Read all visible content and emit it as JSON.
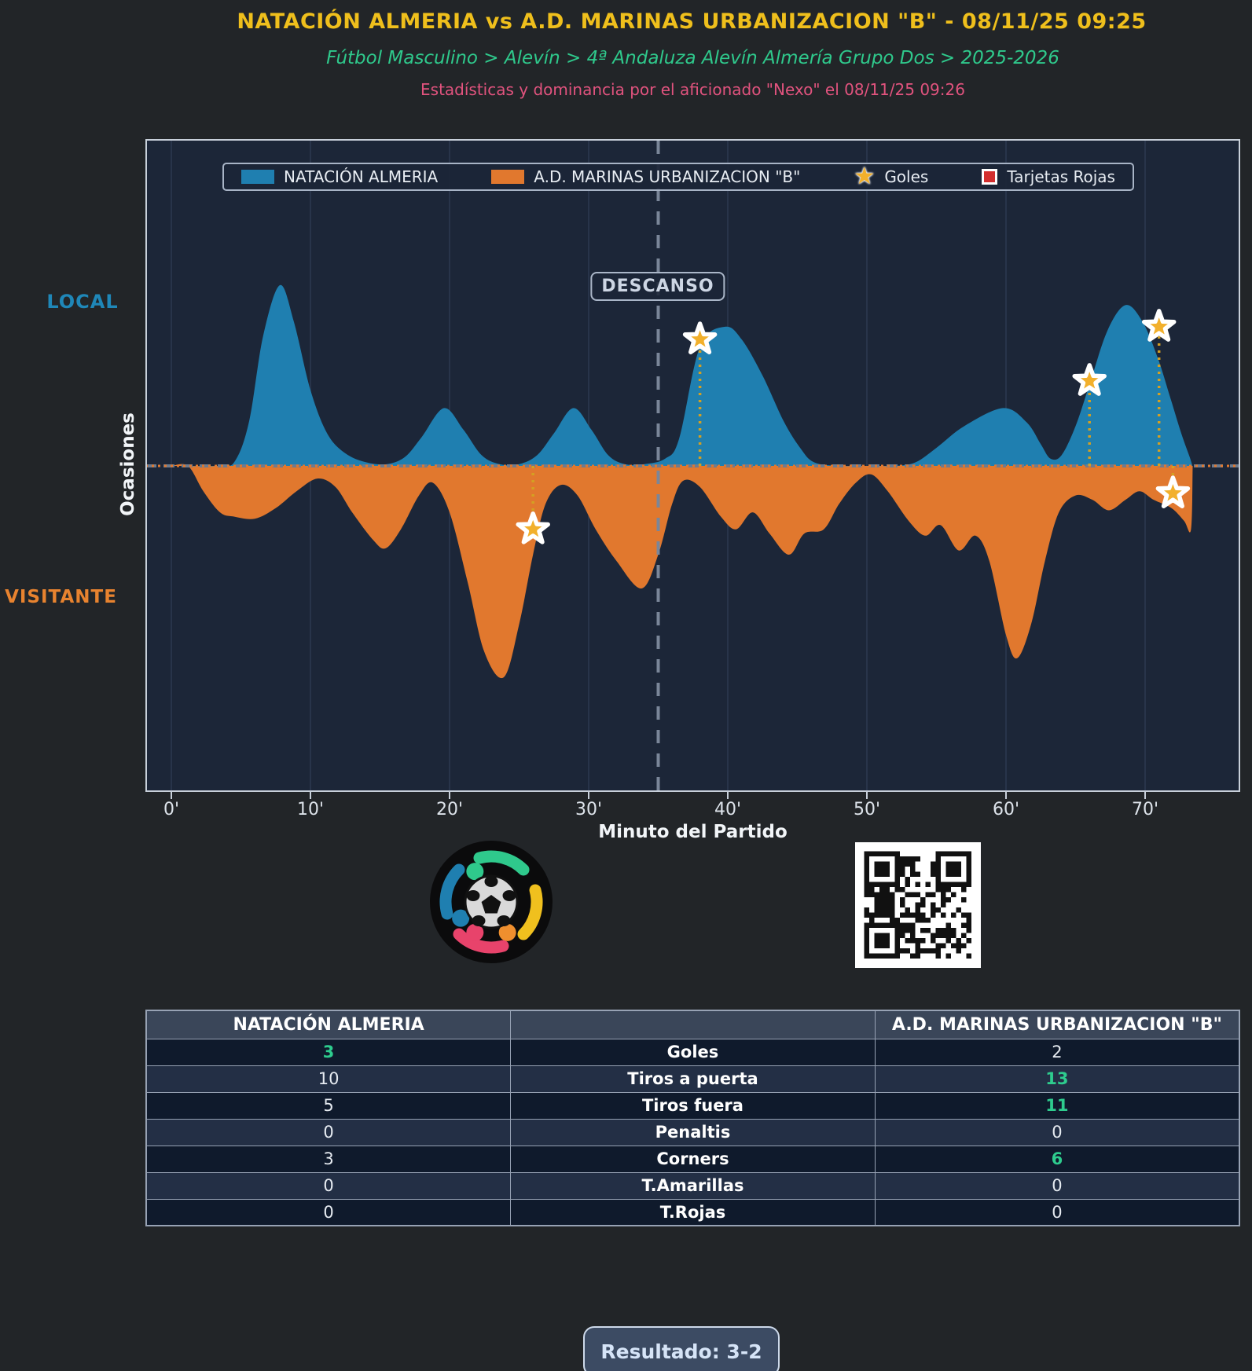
{
  "header": {
    "title": "NATACIÓN ALMERIA vs A.D. MARINAS URBANIZACION \"B\" - 08/11/25 09:25",
    "breadcrumb": "Fútbol Masculino > Alevín > 4ª Andaluza Alevín Almería Grupo Dos > 2025-2026",
    "byline": "Estadísticas y dominancia por el aficionado \"Nexo\" el 08/11/25 09:26"
  },
  "legend": {
    "home_label": "NATACIÓN ALMERIA",
    "away_label": "A.D. MARINAS URBANIZACION \"B\"",
    "goals_label": "Goles",
    "red_cards_label": "Tarjetas Rojas"
  },
  "axis": {
    "side_top": "LOCAL",
    "side_bottom": "VISITANTE",
    "ylabel": "Ocasiones",
    "xlabel": "Minuto del Partido",
    "halftime_label": "DESCANSO",
    "xticks": [
      "0'",
      "10'",
      "20'",
      "30'",
      "40'",
      "50'",
      "60'",
      "70'"
    ]
  },
  "chart_data": {
    "type": "area",
    "description": "Mirrored dominance timeline: home occasions plotted up (blue), away occasions plotted down (orange), intensity normalized 0-1",
    "x_unit": "minute",
    "x_range": [
      -2,
      77
    ],
    "halftime_minute": 35,
    "xtick_minutes": [
      0,
      10,
      20,
      30,
      40,
      50,
      60,
      70
    ],
    "home_series": [
      [
        0,
        0
      ],
      [
        3.5,
        0
      ],
      [
        4.6,
        0.03
      ],
      [
        5.6,
        0.25
      ],
      [
        6.6,
        0.72
      ],
      [
        7.8,
        1.0
      ],
      [
        8.8,
        0.8
      ],
      [
        10,
        0.42
      ],
      [
        11.2,
        0.18
      ],
      [
        12.5,
        0.07
      ],
      [
        14,
        0.02
      ],
      [
        15.5,
        0.01
      ],
      [
        16.8,
        0.05
      ],
      [
        18,
        0.16
      ],
      [
        19.6,
        0.32
      ],
      [
        21,
        0.2
      ],
      [
        22.3,
        0.06
      ],
      [
        23.6,
        0.01
      ],
      [
        25,
        0.01
      ],
      [
        26.3,
        0.06
      ],
      [
        27.5,
        0.18
      ],
      [
        28.9,
        0.32
      ],
      [
        30.2,
        0.2
      ],
      [
        31.4,
        0.06
      ],
      [
        32.6,
        0.01
      ],
      [
        34,
        0.01
      ],
      [
        35.5,
        0.04
      ],
      [
        36.5,
        0.15
      ],
      [
        38,
        0.66
      ],
      [
        39.8,
        0.77
      ],
      [
        41,
        0.7
      ],
      [
        42.5,
        0.5
      ],
      [
        44,
        0.25
      ],
      [
        45.2,
        0.1
      ],
      [
        46.2,
        0.02
      ],
      [
        48,
        0
      ],
      [
        50,
        0
      ],
      [
        52,
        0
      ],
      [
        53.5,
        0.02
      ],
      [
        55,
        0.1
      ],
      [
        57,
        0.22
      ],
      [
        59.8,
        0.32
      ],
      [
        61.5,
        0.24
      ],
      [
        62.5,
        0.12
      ],
      [
        63.2,
        0.04
      ],
      [
        64,
        0.06
      ],
      [
        65,
        0.22
      ],
      [
        66,
        0.45
      ],
      [
        67.3,
        0.75
      ],
      [
        68.6,
        0.89
      ],
      [
        69.8,
        0.8
      ],
      [
        70.9,
        0.6
      ],
      [
        71.8,
        0.38
      ],
      [
        72.6,
        0.18
      ],
      [
        73.2,
        0.05
      ],
      [
        73.4,
        0
      ]
    ],
    "away_series": [
      [
        0,
        0
      ],
      [
        1.2,
        0
      ],
      [
        2.3,
        0.12
      ],
      [
        3.5,
        0.22
      ],
      [
        4.5,
        0.24
      ],
      [
        6,
        0.25
      ],
      [
        7.5,
        0.2
      ],
      [
        9,
        0.12
      ],
      [
        10.5,
        0.06
      ],
      [
        11.8,
        0.1
      ],
      [
        13,
        0.22
      ],
      [
        14.5,
        0.35
      ],
      [
        15.4,
        0.39
      ],
      [
        16.5,
        0.3
      ],
      [
        17.8,
        0.14
      ],
      [
        18.8,
        0.08
      ],
      [
        20,
        0.22
      ],
      [
        21.3,
        0.55
      ],
      [
        22.5,
        0.88
      ],
      [
        23.9,
        1.0
      ],
      [
        25,
        0.75
      ],
      [
        26,
        0.42
      ],
      [
        26.9,
        0.18
      ],
      [
        28,
        0.09
      ],
      [
        29.2,
        0.14
      ],
      [
        30.5,
        0.3
      ],
      [
        32,
        0.45
      ],
      [
        33.8,
        0.58
      ],
      [
        35,
        0.42
      ],
      [
        36,
        0.18
      ],
      [
        36.8,
        0.07
      ],
      [
        38,
        0.1
      ],
      [
        39.5,
        0.24
      ],
      [
        40.6,
        0.3
      ],
      [
        41.8,
        0.22
      ],
      [
        43,
        0.32
      ],
      [
        44.4,
        0.42
      ],
      [
        45.5,
        0.32
      ],
      [
        46.9,
        0.3
      ],
      [
        48,
        0.18
      ],
      [
        49.2,
        0.08
      ],
      [
        50.3,
        0.04
      ],
      [
        51.5,
        0.12
      ],
      [
        53,
        0.26
      ],
      [
        54.2,
        0.33
      ],
      [
        55.3,
        0.28
      ],
      [
        56.6,
        0.4
      ],
      [
        57.8,
        0.33
      ],
      [
        58.8,
        0.45
      ],
      [
        60,
        0.8
      ],
      [
        60.8,
        0.91
      ],
      [
        61.8,
        0.75
      ],
      [
        62.8,
        0.45
      ],
      [
        63.8,
        0.22
      ],
      [
        65,
        0.14
      ],
      [
        66.2,
        0.16
      ],
      [
        67.4,
        0.21
      ],
      [
        68.6,
        0.16
      ],
      [
        69.6,
        0.12
      ],
      [
        70.6,
        0.16
      ],
      [
        71.9,
        0.2
      ],
      [
        72.8,
        0.26
      ],
      [
        73.3,
        0.3
      ],
      [
        73.42,
        0
      ]
    ],
    "goals": [
      {
        "team": "home",
        "minute": 38,
        "intensity": 0.7
      },
      {
        "team": "home",
        "minute": 66,
        "intensity": 0.47
      },
      {
        "team": "home",
        "minute": 71,
        "intensity": 0.77
      },
      {
        "team": "away",
        "minute": 26,
        "intensity": 0.3
      },
      {
        "team": "away",
        "minute": 72,
        "intensity": 0.13
      }
    ],
    "red_cards": [],
    "grid": "vertical-only",
    "legend_position": "top-inside"
  },
  "table": {
    "headers": [
      "NATACIÓN ALMERIA",
      "",
      "A.D. MARINAS URBANIZACION \"B\""
    ],
    "rows": [
      {
        "home": "3",
        "label": "Goles",
        "away": "2",
        "highlight": "home"
      },
      {
        "home": "10",
        "label": "Tiros a puerta",
        "away": "13",
        "highlight": "away"
      },
      {
        "home": "5",
        "label": "Tiros fuera",
        "away": "11",
        "highlight": "away"
      },
      {
        "home": "0",
        "label": "Penaltis",
        "away": "0",
        "highlight": null
      },
      {
        "home": "3",
        "label": "Corners",
        "away": "6",
        "highlight": "away"
      },
      {
        "home": "0",
        "label": "T.Amarillas",
        "away": "0",
        "highlight": null
      },
      {
        "home": "0",
        "label": "T.Rojas",
        "away": "0",
        "highlight": null
      }
    ]
  },
  "footer": {
    "result_label": "Resultado: 3-2"
  },
  "colors": {
    "page_bg": "#222528",
    "plot_bg": "#1c2638",
    "grid": "#2c3950",
    "spine": "#c8d0da",
    "home": "#1f7fb0",
    "away": "#e1782e",
    "baseline_gray": "#6e7b8e",
    "halftime_line": "#7a8699",
    "goal_line": "#d4a022",
    "star_fill": "#f2b02c",
    "star_edge": "#ffffff",
    "red_card": "#d32f2f",
    "title_gold": "#efbf1c",
    "breadcrumb_green": "#2fc98c",
    "byline_pink": "#e1537e",
    "stat_win_green": "#2ecc8e"
  }
}
